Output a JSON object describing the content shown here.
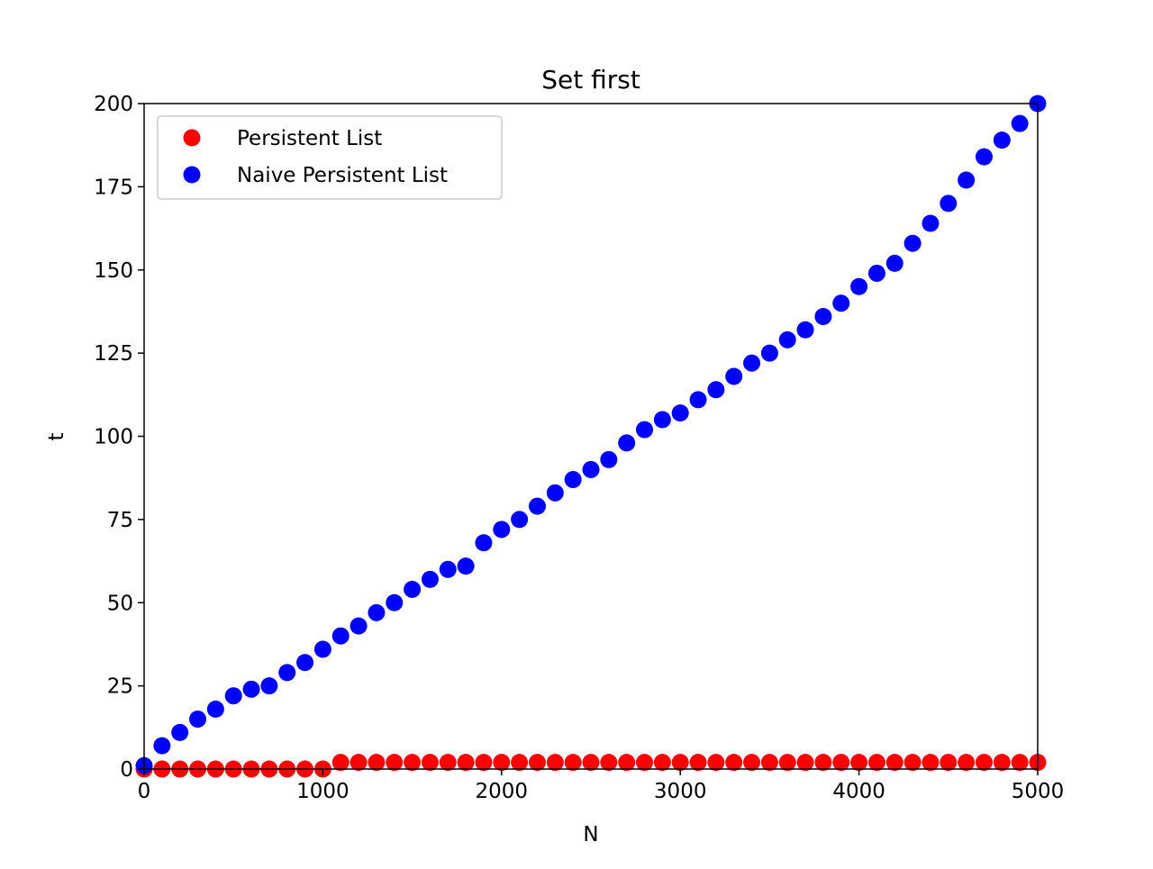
{
  "chart_data": {
    "type": "scatter",
    "title": "Set first",
    "xlabel": "N",
    "ylabel": "t",
    "xlim": [
      0,
      5000
    ],
    "ylim": [
      0,
      200
    ],
    "x_ticks": [
      0,
      1000,
      2000,
      3000,
      4000,
      5000
    ],
    "y_ticks": [
      0,
      25,
      50,
      75,
      100,
      125,
      150,
      175,
      200
    ],
    "grid": false,
    "legend_position": "top-left",
    "x": [
      0,
      100,
      200,
      300,
      400,
      500,
      600,
      700,
      800,
      900,
      1000,
      1100,
      1200,
      1300,
      1400,
      1500,
      1600,
      1700,
      1800,
      1900,
      2000,
      2100,
      2200,
      2300,
      2400,
      2500,
      2600,
      2700,
      2800,
      2900,
      3000,
      3100,
      3200,
      3300,
      3400,
      3500,
      3600,
      3700,
      3800,
      3900,
      4000,
      4100,
      4200,
      4300,
      4400,
      4500,
      4600,
      4700,
      4800,
      4900,
      5000
    ],
    "series": [
      {
        "name": "Persistent List",
        "color": "#ff0000",
        "values": [
          0,
          0,
          0,
          0,
          0,
          0,
          0,
          0,
          0,
          0,
          0,
          2,
          2,
          2,
          2,
          2,
          2,
          2,
          2,
          2,
          2,
          2,
          2,
          2,
          2,
          2,
          2,
          2,
          2,
          2,
          2,
          2,
          2,
          2,
          2,
          2,
          2,
          2,
          2,
          2,
          2,
          2,
          2,
          2,
          2,
          2,
          2,
          2,
          2,
          2,
          2
        ]
      },
      {
        "name": "Naive Persistent List",
        "color": "#0000ff",
        "values": [
          1,
          7,
          11,
          15,
          18,
          22,
          24,
          25,
          29,
          32,
          36,
          40,
          43,
          47,
          50,
          54,
          57,
          60,
          61,
          68,
          72,
          75,
          79,
          83,
          87,
          90,
          93,
          98,
          102,
          105,
          107,
          111,
          114,
          118,
          122,
          125,
          129,
          132,
          136,
          140,
          145,
          149,
          152,
          158,
          164,
          170,
          177,
          184,
          189,
          194,
          200
        ]
      }
    ]
  }
}
